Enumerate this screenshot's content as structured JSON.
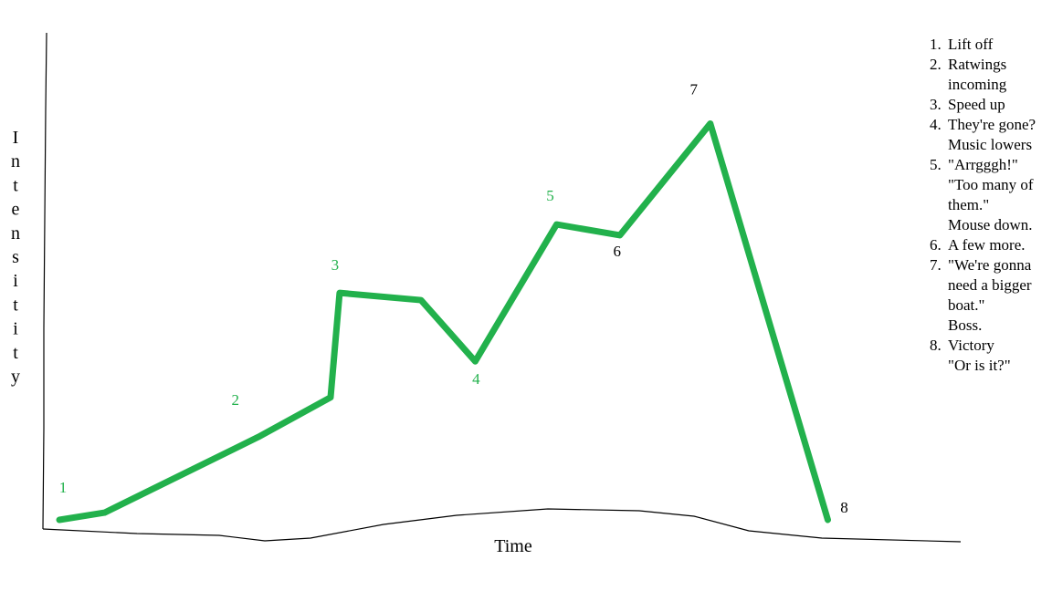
{
  "chart_data": {
    "type": "line",
    "title": "",
    "xlabel": "Time",
    "ylabel": "Intensitity",
    "ylim": [
      0,
      10
    ],
    "x": [
      0,
      0.5,
      2.2,
      3,
      3.1,
      4,
      4.6,
      5.5,
      6.2,
      7.2,
      8.5
    ],
    "series": [
      {
        "values": [
          0,
          0.2,
          2.3,
          3.4,
          6.3,
          6.1,
          4.4,
          8.2,
          7.9,
          11.0,
          0
        ],
        "color": "#22b14c"
      }
    ],
    "point_labels": [
      "1",
      "2",
      "3",
      "4",
      "5",
      "6",
      "7",
      "8"
    ],
    "point_label_colors": [
      "#22b14c",
      "#22b14c",
      "#22b14c",
      "#22b14c",
      "#22b14c",
      "#000000",
      "#000000",
      "#000000"
    ],
    "annotations": [
      {
        "num": "1.",
        "lines": [
          "Lift off"
        ]
      },
      {
        "num": "2.",
        "lines": [
          "Ratwings",
          "incoming"
        ]
      },
      {
        "num": "3.",
        "lines": [
          "Speed up"
        ]
      },
      {
        "num": "4.",
        "lines": [
          "They're gone?",
          "Music lowers"
        ]
      },
      {
        "num": "5.",
        "lines": [
          "\"Arrgggh!\"",
          "\"Too many of",
          "them.\"",
          "Mouse down."
        ]
      },
      {
        "num": "6.",
        "lines": [
          "A few more."
        ]
      },
      {
        "num": "7.",
        "lines": [
          "\"We're gonna",
          "need a bigger",
          "boat.\"",
          "Boss."
        ]
      },
      {
        "num": "8.",
        "lines": [
          "Victory",
          "\"Or is it?\""
        ]
      }
    ],
    "grid": false,
    "legend": "right"
  }
}
